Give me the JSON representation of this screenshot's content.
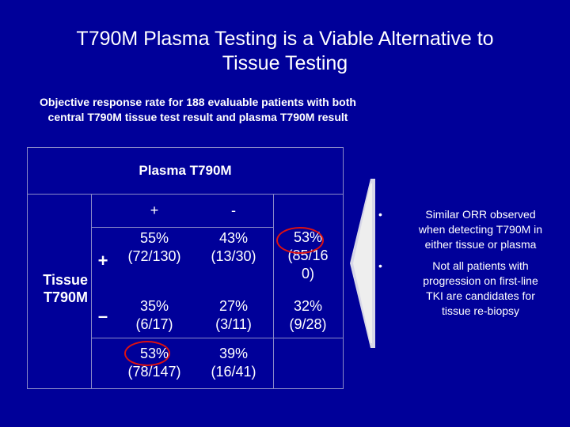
{
  "slide": {
    "title_line1": "T790M Plasma Testing is a Viable Alternative to",
    "title_line2": "Tissue Testing",
    "subtitle_line1": "Objective response rate for 188 evaluable patients with both",
    "subtitle_line2": "central T790M tissue test result and plasma T790M result"
  },
  "table": {
    "plasma_header": "Plasma T790M",
    "col_plus": "+",
    "col_minus": "-",
    "row_header_line1": "Tissue",
    "row_header_line2": "T790M",
    "row_plus": "+",
    "row_minus": "–",
    "r1": {
      "c1_pct": "55%",
      "c1_frac": "(72/130)",
      "c2_pct": "43%",
      "c2_frac": "(13/30)",
      "c3_pct": "53%",
      "c3_frac_a": "(85/16",
      "c3_frac_b": "0)"
    },
    "r2": {
      "c1_pct": "35%",
      "c1_frac": "(6/17)",
      "c2_pct": "27%",
      "c2_frac": "(3/11)",
      "c3_pct": "32%",
      "c3_frac": "(9/28)"
    },
    "r3": {
      "c1_pct": "53%",
      "c1_frac": "(78/147)",
      "c2_pct": "39%",
      "c2_frac": "(16/41)"
    }
  },
  "notes": {
    "bullet_symbol": "•",
    "b1_l1": "Similar ORR observed",
    "b1_l2": "when detecting T790M in",
    "b1_l3": "either tissue or plasma",
    "b2_l1": "Not all patients with",
    "b2_l2": "progression on first-line",
    "b2_l3": "TKI are candidates for",
    "b2_l4": "tissue re-biopsy"
  },
  "colors": {
    "background": "#000099",
    "highlight_circle": "#dd1111",
    "grid": "#8a8ac8"
  }
}
